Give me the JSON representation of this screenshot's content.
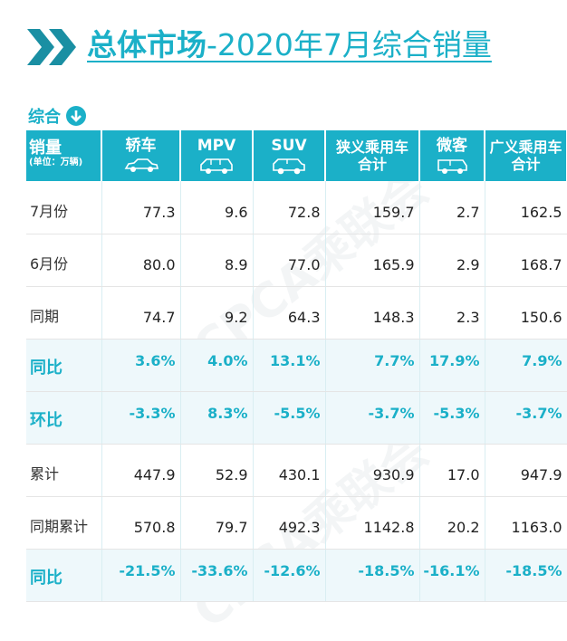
{
  "header": {
    "title_bold": "总体市场",
    "title_rest": "-2020年7月综合销量"
  },
  "section": {
    "label": "综合",
    "icon": "arrow-down-circle-icon"
  },
  "table": {
    "corner": {
      "main": "销量",
      "sub": "(单位：万辆)"
    },
    "columns": [
      {
        "label": "轿车",
        "icon": "sedan-car-icon"
      },
      {
        "label": "MPV",
        "icon": "mpv-van-icon"
      },
      {
        "label": "SUV",
        "icon": "suv-icon"
      },
      {
        "label": "狭义乘用车",
        "label2": "合计"
      },
      {
        "label": "微客",
        "icon": "minivan-icon"
      },
      {
        "label": "广义乘用车",
        "label2": "合计"
      }
    ],
    "rows": [
      {
        "label": "7月份",
        "type": "value",
        "cells": [
          "77.3",
          "9.6",
          "72.8",
          "159.7",
          "2.7",
          "162.5"
        ]
      },
      {
        "label": "6月份",
        "type": "value",
        "cells": [
          "80.0",
          "8.9",
          "77.0",
          "165.9",
          "2.9",
          "168.7"
        ]
      },
      {
        "label": "同期",
        "type": "value",
        "cells": [
          "74.7",
          "9.2",
          "64.3",
          "148.3",
          "2.3",
          "150.6"
        ]
      },
      {
        "label": "同比",
        "type": "pct",
        "cells": [
          "3.6%",
          "4.0%",
          "13.1%",
          "7.7%",
          "17.9%",
          "7.9%"
        ]
      },
      {
        "label": "环比",
        "type": "pct",
        "cells": [
          "-3.3%",
          "8.3%",
          "-5.5%",
          "-3.7%",
          "-5.3%",
          "-3.7%"
        ]
      },
      {
        "label": "累计",
        "type": "value",
        "cells": [
          "447.9",
          "52.9",
          "430.1",
          "930.9",
          "17.0",
          "947.9"
        ]
      },
      {
        "label": "同期累计",
        "type": "value",
        "cells": [
          "570.8",
          "79.7",
          "492.3",
          "1142.8",
          "20.2",
          "1163.0"
        ]
      },
      {
        "label": "同比",
        "type": "pct",
        "cells": [
          "-21.5%",
          "-33.6%",
          "-12.6%",
          "-18.5%",
          "-16.1%",
          "-18.5%"
        ]
      }
    ]
  },
  "watermark": "CPCA乘联会",
  "colors": {
    "accent": "#1bb0c8",
    "pct_row_bg": "#eef8fb",
    "chevron": "#1a8fa3"
  }
}
